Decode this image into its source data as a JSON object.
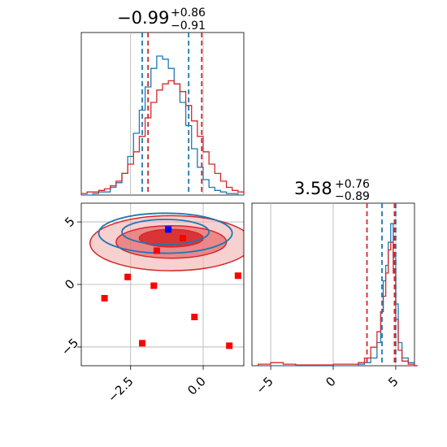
{
  "chart_data": [
    {
      "type": "histogram",
      "panel": "param1-marginal",
      "title": {
        "value": "−0.99",
        "upper": "+0.86",
        "lower": "−0.91"
      },
      "xlim": [
        -4.2,
        1.4
      ],
      "colors": {
        "blue": "#1f77b4",
        "red": "#d62728"
      },
      "quantiles": {
        "blue": [
          -2.1,
          -0.5
        ],
        "red": [
          -1.9,
          -0.05
        ]
      },
      "series": [
        {
          "color_key": "blue",
          "x": [
            -4.2,
            -4.0,
            -3.8,
            -3.6,
            -3.4,
            -3.2,
            -3.0,
            -2.8,
            -2.6,
            -2.4,
            -2.2,
            -2.0,
            -1.8,
            -1.6,
            -1.4,
            -1.2,
            -1.0,
            -0.8,
            -0.6,
            -0.4,
            -0.2,
            0.0,
            0.2,
            0.4,
            0.6,
            0.8,
            1.0,
            1.2
          ],
          "y": [
            0.0,
            0.0,
            0.01,
            0.02,
            0.02,
            0.05,
            0.08,
            0.14,
            0.25,
            0.4,
            0.55,
            0.7,
            0.82,
            0.9,
            0.88,
            0.82,
            0.72,
            0.6,
            0.45,
            0.3,
            0.18,
            0.1,
            0.05,
            0.03,
            0.02,
            0.01,
            0.01,
            0.0
          ]
        },
        {
          "color_key": "red",
          "x": [
            -4.2,
            -4.0,
            -3.8,
            -3.6,
            -3.4,
            -3.2,
            -3.0,
            -2.8,
            -2.6,
            -2.4,
            -2.2,
            -2.0,
            -1.8,
            -1.6,
            -1.4,
            -1.2,
            -1.0,
            -0.8,
            -0.6,
            -0.4,
            -0.2,
            0.0,
            0.2,
            0.4,
            0.6,
            0.8,
            1.0,
            1.2
          ],
          "y": [
            0.01,
            0.02,
            0.02,
            0.03,
            0.04,
            0.06,
            0.09,
            0.14,
            0.2,
            0.28,
            0.38,
            0.5,
            0.6,
            0.68,
            0.72,
            0.74,
            0.72,
            0.67,
            0.58,
            0.48,
            0.38,
            0.28,
            0.2,
            0.14,
            0.09,
            0.05,
            0.03,
            0.02
          ]
        }
      ]
    },
    {
      "type": "histogram",
      "panel": "param2-marginal",
      "title": {
        "value": "3.58",
        "upper": "+0.76",
        "lower": "−0.89"
      },
      "xlim": [
        -6.5,
        6.5
      ],
      "xticks": [
        "−5",
        "0",
        "5"
      ],
      "tick_values": [
        -5,
        0,
        5
      ],
      "quantiles": {
        "blue": [
          3.9,
          5.0
        ],
        "red": [
          2.7,
          4.9
        ]
      },
      "series": [
        {
          "color_key": "blue",
          "x": [
            -6,
            -5,
            -4,
            -3,
            -2,
            -1,
            0,
            1,
            2,
            2.5,
            3,
            3.5,
            3.8,
            4.0,
            4.2,
            4.4,
            4.6,
            4.8,
            5.0,
            5.2,
            5.5,
            6,
            6.5
          ],
          "y": [
            0,
            0,
            0,
            0,
            0,
            0,
            0,
            0,
            0.01,
            0.02,
            0.05,
            0.15,
            0.35,
            0.55,
            0.65,
            0.8,
            0.92,
            0.7,
            0.4,
            0.15,
            0.05,
            0.02,
            0
          ]
        },
        {
          "color_key": "red",
          "x": [
            -6,
            -5,
            -4,
            -3,
            -2,
            -1,
            0,
            1,
            2,
            2.5,
            3,
            3.5,
            3.8,
            4.0,
            4.2,
            4.4,
            4.6,
            4.8,
            5.0,
            5.2,
            5.5,
            6,
            6.5
          ],
          "y": [
            0.01,
            0.02,
            0.01,
            0.005,
            0.005,
            0.005,
            0.01,
            0.01,
            0.02,
            0.05,
            0.12,
            0.22,
            0.35,
            0.45,
            0.6,
            0.75,
            0.8,
            0.6,
            0.3,
            0.1,
            0.03,
            0.01,
            0
          ]
        }
      ]
    },
    {
      "type": "scatter",
      "panel": "joint",
      "xlim": [
        -4.2,
        1.4
      ],
      "ylim": [
        -6.5,
        6.5
      ],
      "xticks": [
        "−2.5",
        "0.0"
      ],
      "xtick_values": [
        -2.5,
        0.0
      ],
      "yticks": [
        "5",
        "0",
        "−5"
      ],
      "ytick_values": [
        5,
        0,
        -5
      ],
      "blue_point": {
        "x": -1.2,
        "y": 4.4
      },
      "red_points": [
        {
          "x": -1.6,
          "y": 2.7
        },
        {
          "x": -0.7,
          "y": 3.7
        },
        {
          "x": -2.6,
          "y": 0.6
        },
        {
          "x": -1.7,
          "y": -0.1
        },
        {
          "x": -3.4,
          "y": -1.1
        },
        {
          "x": -0.3,
          "y": -2.6
        },
        {
          "x": -2.1,
          "y": -4.7
        },
        {
          "x": 0.9,
          "y": -4.9
        },
        {
          "x": 1.2,
          "y": 0.7
        }
      ],
      "red_contours": [
        {
          "cx": -1.1,
          "cy": 3.7,
          "rx": 1.1,
          "ry": 0.7,
          "fill": "#d62728",
          "opacity": 0.85
        },
        {
          "cx": -1.1,
          "cy": 3.4,
          "rx": 1.9,
          "ry": 1.3,
          "fill": "#e66a6b",
          "opacity": 0.7
        },
        {
          "cx": -1.1,
          "cy": 3.3,
          "rx": 2.8,
          "ry": 2.2,
          "fill": "#f2b1b1",
          "opacity": 0.6
        }
      ],
      "blue_contours": [
        {
          "cx": -1.3,
          "cy": 4.2,
          "rx": 1.5,
          "ry": 1.0
        },
        {
          "cx": -1.3,
          "cy": 4.1,
          "rx": 2.3,
          "ry": 1.6
        }
      ]
    }
  ]
}
